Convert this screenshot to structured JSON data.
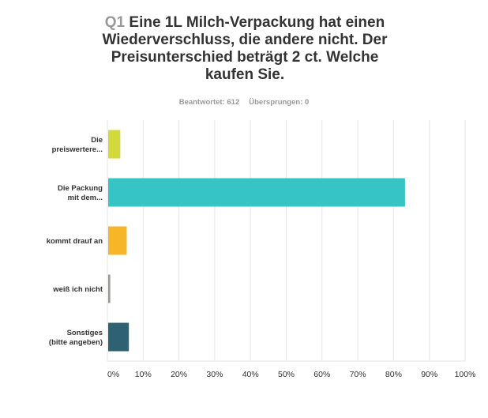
{
  "question": {
    "number": "Q1",
    "text": "Eine 1L Milch-Verpackung hat einen Wiederverschluss, die andere nicht. Der Preisunterschied beträgt 2 ct. Welche kaufen Sie."
  },
  "stats": {
    "answered_label": "Beantwortet: 612",
    "skipped_label": "Übersprungen: 0"
  },
  "colors": {
    "grid": "#e6e6e6",
    "axis_text": "#333333"
  },
  "chart_data": {
    "type": "bar",
    "orientation": "horizontal",
    "categories": [
      [
        "Die",
        "preiswertere..."
      ],
      [
        "Die Packung",
        "mit dem..."
      ],
      [
        "kommt drauf an"
      ],
      [
        "weiß ich nicht"
      ],
      [
        "Sonstiges",
        "(bitte angeben)"
      ]
    ],
    "values": [
      3.6,
      83.2,
      5.4,
      0.8,
      6.0
    ],
    "colors": [
      "#d2d93b",
      "#37c4c4",
      "#f7b528",
      "#999b8a",
      "#2e6272"
    ],
    "xlim": [
      0,
      100
    ],
    "x_ticks": [
      "0%",
      "10%",
      "20%",
      "30%",
      "40%",
      "50%",
      "60%",
      "70%",
      "80%",
      "90%",
      "100%"
    ],
    "grid": true
  }
}
